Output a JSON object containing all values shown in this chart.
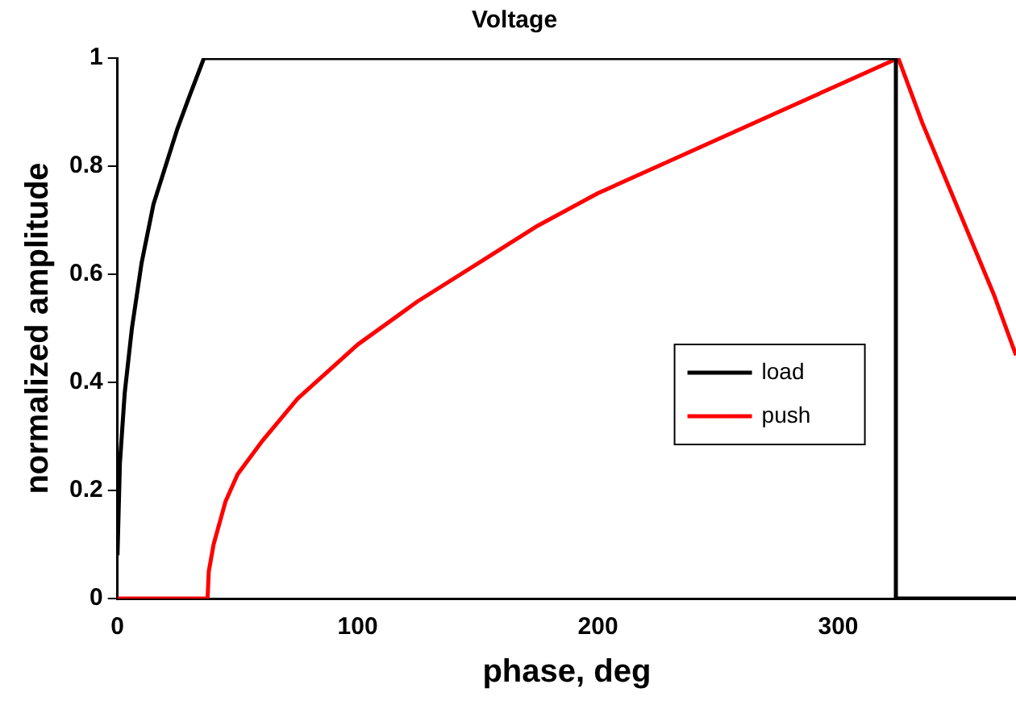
{
  "chart_data": {
    "type": "line",
    "title": "Voltage",
    "xlabel": "phase, deg",
    "ylabel": "normalized amplitude",
    "xlim": [
      0,
      374
    ],
    "xticks": [
      0,
      100,
      200,
      300
    ],
    "ylim": [
      0,
      1
    ],
    "yticks": [
      0,
      0.2,
      0.4,
      0.6,
      0.8,
      1
    ],
    "grid": false,
    "legend": "right",
    "marker": "none",
    "line_style": "solid",
    "series": [
      {
        "name": "load",
        "color": "#000000",
        "x": [
          0,
          1,
          3,
          6,
          10,
          15,
          20,
          25,
          30,
          36,
          324,
          324,
          374
        ],
        "values": [
          0.08,
          0.25,
          0.38,
          0.5,
          0.62,
          0.73,
          0.8,
          0.87,
          0.93,
          1,
          1,
          0,
          0
        ]
      },
      {
        "name": "push",
        "color": "#ff0000",
        "x": [
          0,
          37.5,
          38,
          40,
          45,
          50,
          60,
          75,
          100,
          125,
          150,
          175,
          200,
          225,
          250,
          275,
          300,
          325,
          335,
          350,
          365,
          374
        ],
        "values": [
          0,
          0,
          0.05,
          0.1,
          0.18,
          0.23,
          0.29,
          0.37,
          0.47,
          0.55,
          0.62,
          0.69,
          0.75,
          0.8,
          0.85,
          0.9,
          0.95,
          1,
          0.88,
          0.72,
          0.56,
          0.45
        ]
      }
    ]
  }
}
